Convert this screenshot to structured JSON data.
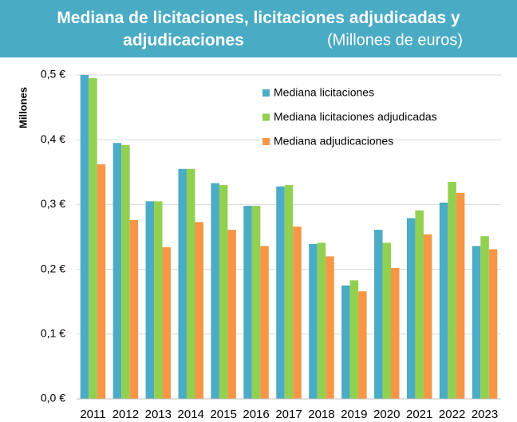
{
  "chart_data": {
    "type": "bar",
    "title": "Mediana de licitaciones, licitaciones adjudicadas y adjudicaciones",
    "subtitle": "(Millones de euros)",
    "y_label": "Millones",
    "categories": [
      "2011",
      "2012",
      "2013",
      "2014",
      "2015",
      "2016",
      "2017",
      "2018",
      "2019",
      "2020",
      "2021",
      "2022",
      "2023"
    ],
    "series": [
      {
        "name": "Mediana licitaciones",
        "color": "#4bacc6",
        "values": [
          0.5,
          0.395,
          0.305,
          0.355,
          0.333,
          0.298,
          0.328,
          0.239,
          0.175,
          0.261,
          0.279,
          0.303,
          0.236
        ]
      },
      {
        "name": "Mediana licitaciones adjudicadas",
        "color": "#92d050",
        "values": [
          0.495,
          0.392,
          0.305,
          0.355,
          0.33,
          0.298,
          0.33,
          0.241,
          0.183,
          0.241,
          0.291,
          0.335,
          0.251
        ]
      },
      {
        "name": "Mediana adjudicaciones",
        "color": "#f79646",
        "values": [
          0.362,
          0.276,
          0.234,
          0.273,
          0.261,
          0.236,
          0.266,
          0.22,
          0.166,
          0.202,
          0.254,
          0.318,
          0.231
        ]
      }
    ],
    "ylim": [
      0,
      0.5
    ],
    "yticks": [
      {
        "value": 0,
        "label": "0,0 €"
      },
      {
        "value": 0.1,
        "label": "0,1 €"
      },
      {
        "value": 0.2,
        "label": "0,2 €"
      },
      {
        "value": 0.3,
        "label": "0,3 €"
      },
      {
        "value": 0.4,
        "label": "0,4 €"
      },
      {
        "value": 0.5,
        "label": "0,5 €"
      }
    ],
    "grid": true,
    "banner_color": "#4aabc4"
  }
}
